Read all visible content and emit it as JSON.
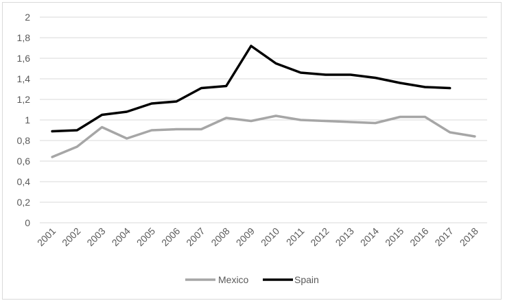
{
  "chart_data": {
    "type": "line",
    "title": "",
    "xlabel": "",
    "ylabel": "",
    "x": [
      "2001",
      "2002",
      "2003",
      "2004",
      "2005",
      "2006",
      "2007",
      "2008",
      "2009",
      "2010",
      "2011",
      "2012",
      "2013",
      "2014",
      "2015",
      "2016",
      "2017",
      "2018"
    ],
    "ylim": [
      0,
      2
    ],
    "yticks": [
      "0",
      "0,2",
      "0,4",
      "0,6",
      "0,8",
      "1",
      "1,2",
      "1,4",
      "1,6",
      "1,8",
      "2"
    ],
    "grid": true,
    "legend_position": "bottom",
    "series": [
      {
        "name": "Mexico",
        "color": "#a6a6a6",
        "values": [
          0.64,
          0.74,
          0.93,
          0.82,
          0.9,
          0.91,
          0.91,
          1.02,
          0.99,
          1.04,
          1.0,
          0.99,
          0.98,
          0.97,
          1.03,
          1.03,
          0.88,
          0.84
        ]
      },
      {
        "name": "Spain",
        "color": "#000000",
        "values": [
          0.89,
          0.9,
          1.05,
          1.08,
          1.16,
          1.18,
          1.31,
          1.33,
          1.72,
          1.55,
          1.46,
          1.44,
          1.44,
          1.41,
          1.36,
          1.32,
          1.31,
          null
        ]
      }
    ]
  }
}
